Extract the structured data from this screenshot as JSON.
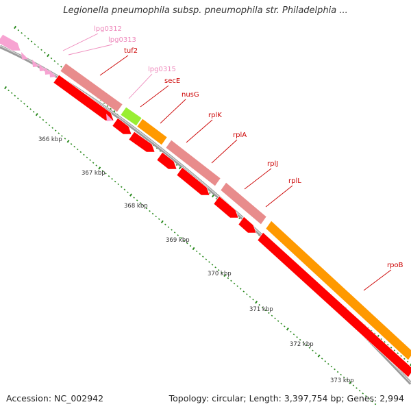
{
  "title": "Legionella pneumophila subsp. pneumophila str. Philadelphia ...",
  "accession": "Accession: NC_002942",
  "summary": "Topology: circular; Length: 3,397,754 bp; Genes: 2,994",
  "colors": {
    "backbone": "#9a9a9a",
    "tick": "#2a8a1e",
    "label_red": "#cc0000",
    "label_pink": "#ee88bb",
    "pink_gene": "#f7a3d2",
    "salmon_gene": "#e88c8c",
    "red_gene": "#ff0000",
    "orange_gene": "#ff9900",
    "green_gene": "#99ee33"
  },
  "scale_labels": [
    "366 kbp",
    "367 kbp",
    "368 kbp",
    "369 kbp",
    "370 kbp",
    "371 kbp",
    "372 kbp",
    "373 kbp"
  ],
  "genes": [
    {
      "name": "lpg0312",
      "color": "pink"
    },
    {
      "name": "lpg0313",
      "color": "pink"
    },
    {
      "name": "tuf2",
      "color": "red"
    },
    {
      "name": "lpg0315",
      "color": "pink"
    },
    {
      "name": "secE",
      "color": "red"
    },
    {
      "name": "nusG",
      "color": "red"
    },
    {
      "name": "rplK",
      "color": "red"
    },
    {
      "name": "rplA",
      "color": "red"
    },
    {
      "name": "rplJ",
      "color": "red"
    },
    {
      "name": "rplL",
      "color": "red"
    },
    {
      "name": "rpoB",
      "color": "red"
    }
  ]
}
